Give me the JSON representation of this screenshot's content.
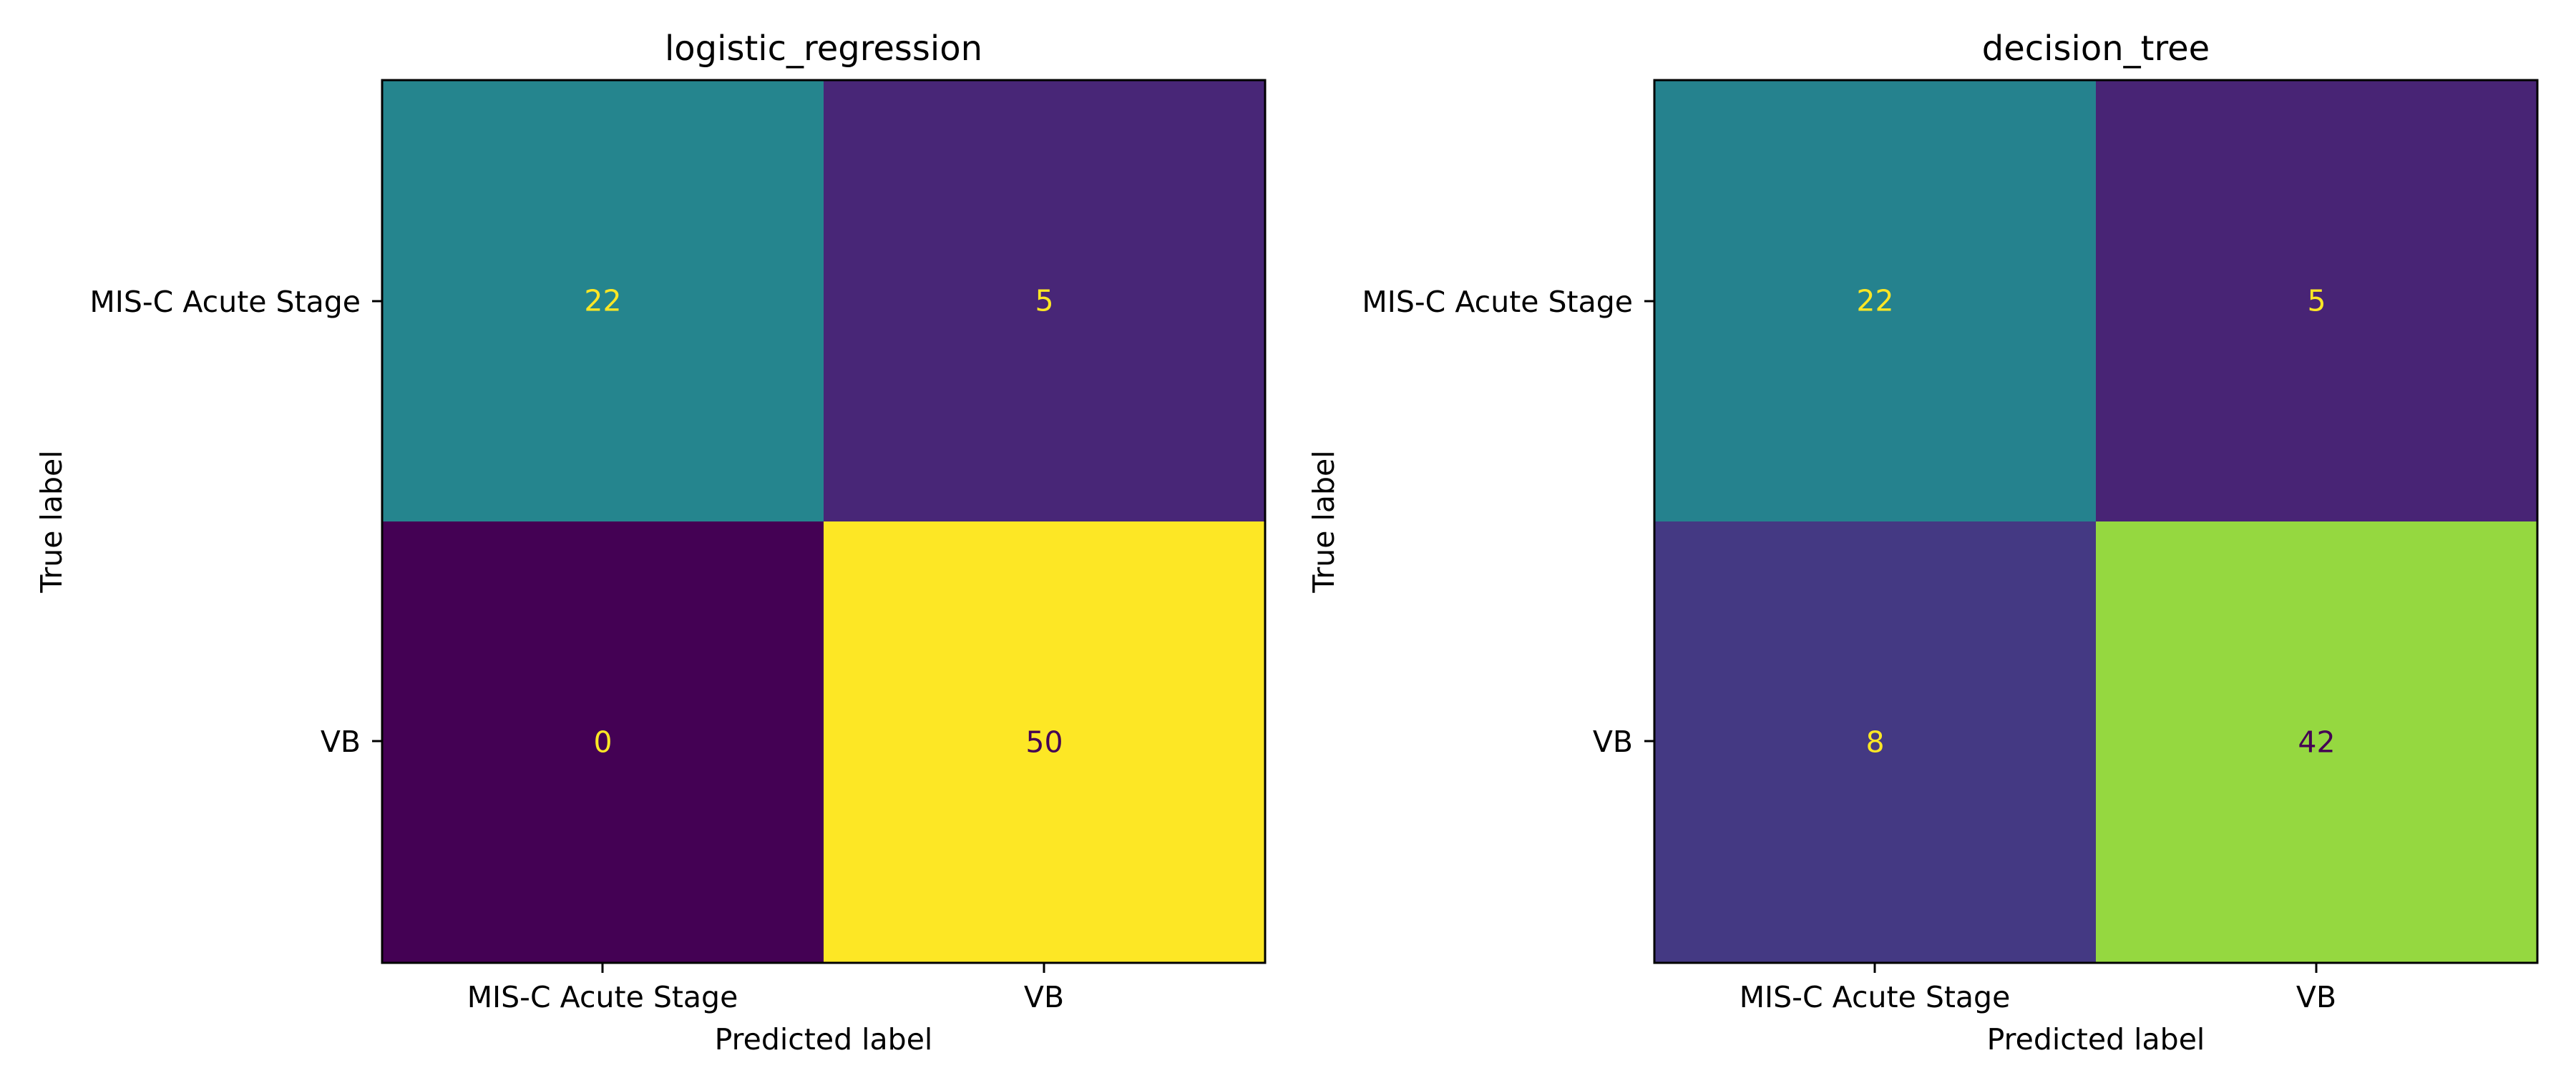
{
  "chart_data": [
    {
      "type": "heatmap",
      "title": "logistic_regression",
      "xlabel": "Predicted label",
      "ylabel": "True label",
      "x_categories": [
        "MIS-C Acute Stage",
        "VB"
      ],
      "y_categories": [
        "MIS-C Acute Stage",
        "VB"
      ],
      "values": [
        [
          22,
          5
        ],
        [
          0,
          50
        ]
      ],
      "cell_colors": [
        [
          "#25858e",
          "#482677"
        ],
        [
          "#440154",
          "#fde725"
        ]
      ],
      "text_colors": [
        [
          "#fde725",
          "#fde725"
        ],
        [
          "#fde725",
          "#440154"
        ]
      ],
      "colormap": "viridis",
      "grid": false,
      "colorbar": false
    },
    {
      "type": "heatmap",
      "title": "decision_tree",
      "xlabel": "Predicted label",
      "ylabel": "True label",
      "x_categories": [
        "MIS-C Acute Stage",
        "VB"
      ],
      "y_categories": [
        "MIS-C Acute Stage",
        "VB"
      ],
      "values": [
        [
          22,
          5
        ],
        [
          8,
          42
        ]
      ],
      "cell_colors": [
        [
          "#25828e",
          "#482475"
        ],
        [
          "#443983",
          "#95d840"
        ]
      ],
      "text_colors": [
        [
          "#fde725",
          "#fde725"
        ],
        [
          "#fde725",
          "#440154"
        ]
      ],
      "colormap": "viridis",
      "grid": false,
      "colorbar": false
    }
  ]
}
